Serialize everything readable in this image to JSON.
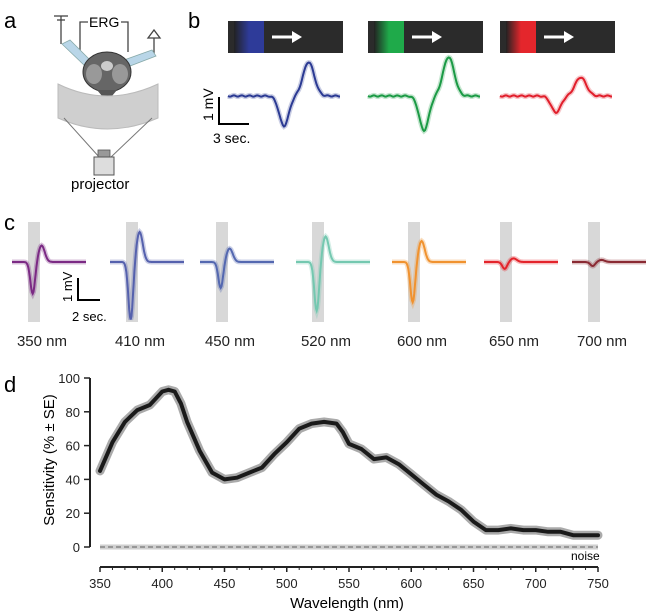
{
  "panels": {
    "a": {
      "letter": "a",
      "erg_label": "ERG",
      "projector_label": "projector"
    },
    "b": {
      "letter": "b",
      "scale_amp": "1 mV",
      "scale_time": "3 sec.",
      "stimuli": [
        {
          "color": "#2e3b99",
          "trace_color": "#2b3a93"
        },
        {
          "color": "#1faa4a",
          "trace_color": "#1b9a45"
        },
        {
          "color": "#e4262c",
          "trace_color": "#e11e2b"
        }
      ]
    },
    "c": {
      "letter": "c",
      "scale_amp": "1 mV",
      "scale_time": "2 sec.",
      "traces": [
        {
          "label": "350 nm",
          "color": "#7b2a84",
          "amp": 0.55
        },
        {
          "label": "410 nm",
          "color": "#5561ad",
          "amp": 1.0
        },
        {
          "label": "450 nm",
          "color": "#5468b0",
          "amp": 0.45
        },
        {
          "label": "520 nm",
          "color": "#74c8b0",
          "amp": 0.85
        },
        {
          "label": "600 nm",
          "color": "#f0922f",
          "amp": 0.7
        },
        {
          "label": "650 nm",
          "color": "#e3242b",
          "amp": 0.12
        },
        {
          "label": "700 nm",
          "color": "#8a2a33",
          "amp": 0.07
        }
      ]
    },
    "d": {
      "letter": "d",
      "noise_label": "noise"
    }
  },
  "chart_data": {
    "type": "line",
    "xlabel": "Wavelength (nm)",
    "ylabel": "Sensitivity (% ± SE)",
    "xlim": [
      350,
      750
    ],
    "ylim": [
      0,
      100
    ],
    "xticks": [
      350,
      400,
      450,
      500,
      550,
      600,
      650,
      700,
      750
    ],
    "yticks": [
      0,
      20,
      40,
      60,
      80,
      100
    ],
    "series": [
      {
        "x": [
          350,
          360,
          370,
          380,
          390,
          395,
          400,
          405,
          410,
          415,
          420,
          430,
          440,
          450,
          460,
          470,
          480,
          490,
          500,
          510,
          520,
          530,
          540,
          545,
          550,
          560,
          570,
          580,
          590,
          600,
          610,
          620,
          630,
          640,
          650,
          660,
          670,
          680,
          690,
          700,
          710,
          720,
          730,
          740,
          750
        ],
        "y": [
          45,
          62,
          74,
          81,
          84,
          88,
          92,
          93,
          92,
          85,
          74,
          57,
          44,
          40,
          41,
          44,
          47,
          55,
          62,
          70,
          73,
          74,
          73,
          68,
          61,
          58,
          52,
          53,
          49,
          43,
          37,
          31,
          27,
          22,
          15,
          10,
          10,
          11,
          10,
          10,
          9,
          9,
          7,
          7,
          7
        ]
      }
    ]
  }
}
